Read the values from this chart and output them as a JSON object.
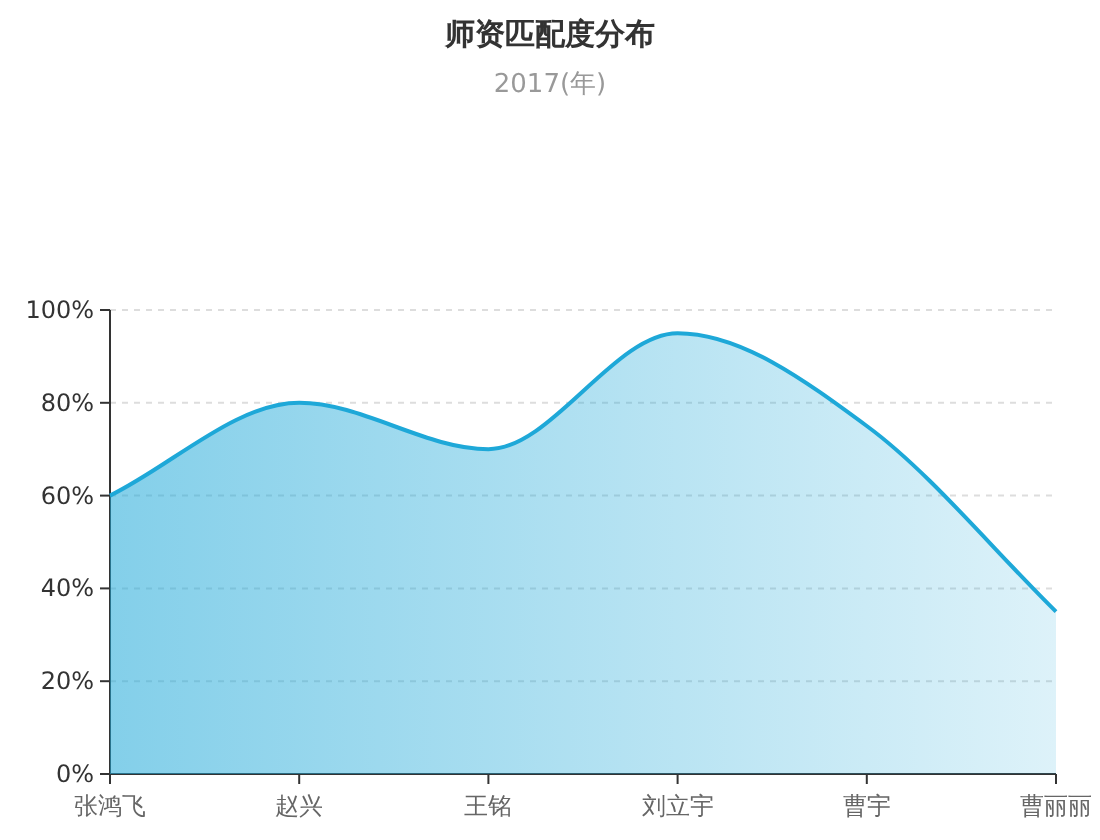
{
  "chart_data": {
    "type": "area",
    "title": "师资匹配度分布",
    "subtitle": "2017(年)",
    "categories": [
      "张鸿飞",
      "赵兴",
      "王铭",
      "刘立宇",
      "曹宇",
      "曹丽丽"
    ],
    "series": [
      {
        "color": "#1ea8d8",
        "values": [
          60,
          80,
          70,
          95,
          75,
          35
        ]
      }
    ],
    "ylim": [
      0,
      100
    ],
    "yticks": [
      {
        "value": 0,
        "label": "0%"
      },
      {
        "value": 20,
        "label": "20%"
      },
      {
        "value": 40,
        "label": "40%"
      },
      {
        "value": 60,
        "label": "60%"
      },
      {
        "value": 80,
        "label": "80%"
      },
      {
        "value": 100,
        "label": "100%"
      }
    ],
    "grid": "y"
  }
}
